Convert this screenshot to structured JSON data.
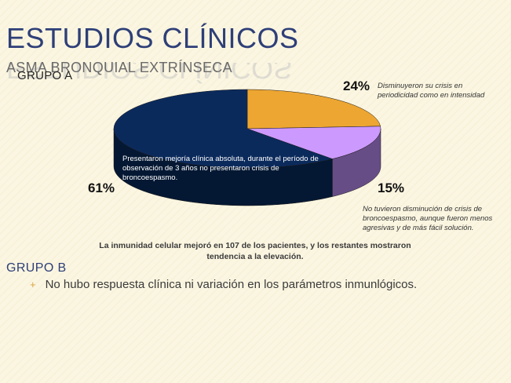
{
  "slide": {
    "title": "ESTUDIOS CLÍNICOS",
    "subtitle": "ASMA BRONQUIAL EXTRÍNSECA",
    "grupo_a": "GRUPO A",
    "grupo_b": "GRUPO B",
    "bottom_note": "La inmunidad celular mejoró en 107 de los pacientes, y los restantes mostraron tendencia a la elevación.",
    "bullet": "No hubo respuesta clínica ni variación en los parámetros inmunlógicos."
  },
  "chart_data": {
    "type": "pie",
    "slices": [
      {
        "value": 24,
        "label": "24%",
        "note": "Disminuyeron su crisis en periodicidad como en intensidad",
        "color": "#eda632",
        "side": "#b67a1c"
      },
      {
        "value": 15,
        "label": "15%",
        "note": "No tuvieron disminución de crisis de broncoespasmo, aunque fueron menos agresivas y de más fácil solución.",
        "color": "#cc99ff",
        "side": "#674d86"
      },
      {
        "value": 61,
        "label": "61%",
        "note": "Presentaron mejoría clínica absoluta, durante el período de observación de 3 años no presentaron crisis de broncoespasmo.",
        "color": "#0b2a5c",
        "side": "#041833"
      }
    ]
  }
}
